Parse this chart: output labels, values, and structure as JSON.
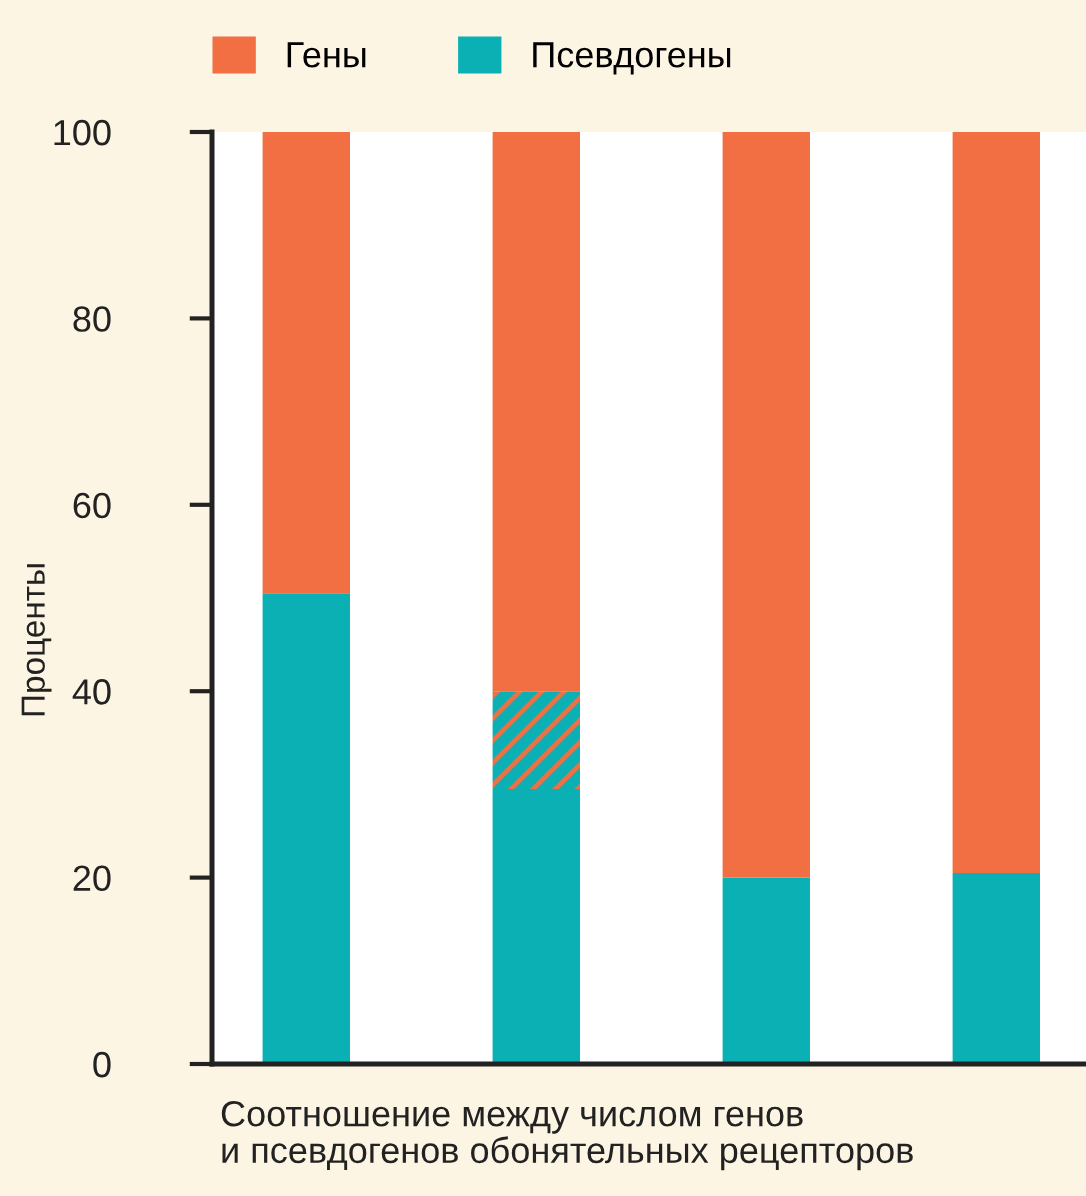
{
  "chart_data": {
    "type": "bar",
    "stacked": true,
    "categories": [
      null,
      null,
      null,
      null
    ],
    "ylabel": "Проценты",
    "xlabel": "Соотношение между числом генов\nи псевдогенов обонятельных рецепторов",
    "series": [
      {
        "name": "Псевдогены",
        "color": "#0ab0b4",
        "values": [
          50.5,
          29.5,
          20,
          20.5
        ]
      },
      {
        "color": "#f26f43",
        "values": [
          null,
          10.5,
          null,
          null
        ]
      },
      {
        "name": "Гены",
        "color": "#f26f43",
        "values": [
          49.5,
          60,
          80,
          79.5
        ]
      }
    ],
    "ylim": [
      0,
      100
    ],
    "yticks": [
      0,
      20,
      40,
      60,
      80,
      100
    ],
    "legend": "top left",
    "grid": false
  }
}
